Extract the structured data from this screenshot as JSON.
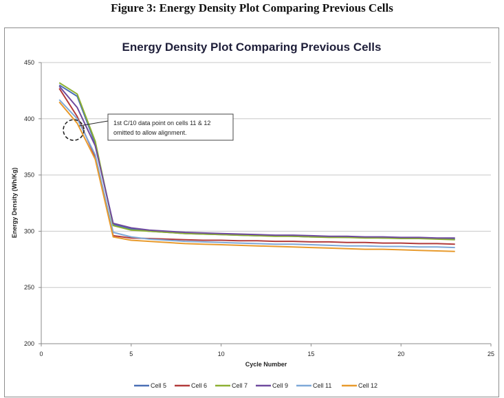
{
  "figure": {
    "caption": "Figure 3: Energy Density Plot Comparing Previous Cells"
  },
  "chart_data": {
    "type": "line",
    "title": "Energy Density Plot Comparing Previous Cells",
    "xlabel": "Cycle Number",
    "ylabel": "Energy Density (Wh/Kg)",
    "xlim": [
      0,
      25
    ],
    "ylim": [
      200,
      450
    ],
    "xticks": [
      0,
      5,
      10,
      15,
      20,
      25
    ],
    "yticks": [
      200,
      250,
      300,
      350,
      400,
      450
    ],
    "grid": "horizontal",
    "legend_position": "bottom",
    "series": [
      {
        "name": "Cell 5",
        "color": "#4a6fb5",
        "x": [
          1,
          2,
          3,
          4,
          5,
          6,
          7,
          8,
          9,
          10,
          11,
          12,
          13,
          14,
          15,
          16,
          17,
          18,
          19,
          20,
          21,
          22,
          23
        ],
        "y": [
          430,
          420,
          378,
          306,
          302,
          300,
          299,
          298,
          297.5,
          297,
          296.5,
          296,
          296,
          295.5,
          295,
          295,
          294.5,
          294.5,
          294,
          294,
          293.5,
          293.5,
          293
        ]
      },
      {
        "name": "Cell 6",
        "color": "#b23a3a",
        "x": [
          1,
          2,
          3,
          4,
          5,
          6,
          7,
          8,
          9,
          10,
          11,
          12,
          13,
          14,
          15,
          16,
          17,
          18,
          19,
          20,
          21,
          22,
          23
        ],
        "y": [
          427,
          402,
          366,
          296,
          294,
          293.5,
          293,
          292.5,
          292,
          292,
          291.5,
          291.5,
          291,
          291,
          290.5,
          290.5,
          290,
          290,
          289.5,
          289.5,
          289,
          289,
          288.5
        ]
      },
      {
        "name": "Cell 7",
        "color": "#8db032",
        "x": [
          1,
          2,
          3,
          4,
          5,
          6,
          7,
          8,
          9,
          10,
          11,
          12,
          13,
          14,
          15,
          16,
          17,
          18,
          19,
          20,
          21,
          22,
          23
        ],
        "y": [
          432,
          422,
          380,
          305,
          301,
          300,
          299,
          298,
          297.5,
          297,
          296.5,
          296,
          295.5,
          295.5,
          295,
          294.5,
          294.5,
          294,
          294,
          293.5,
          293.5,
          293,
          292.5
        ]
      },
      {
        "name": "Cell 9",
        "color": "#6e4a9e",
        "x": [
          1,
          2,
          3,
          4,
          5,
          6,
          7,
          8,
          9,
          10,
          11,
          12,
          13,
          14,
          15,
          16,
          17,
          18,
          19,
          20,
          21,
          22,
          23
        ],
        "y": [
          429,
          410,
          376,
          307,
          303,
          301,
          300,
          299,
          298.5,
          298,
          297.5,
          297,
          296.5,
          296.5,
          296,
          295.5,
          295.5,
          295,
          295,
          294.5,
          294.5,
          294,
          294
        ]
      },
      {
        "name": "Cell 11",
        "color": "#7ea8d8",
        "x": [
          1,
          2,
          3,
          4,
          5,
          6,
          7,
          8,
          9,
          10,
          11,
          12,
          13,
          14,
          15,
          16,
          17,
          18,
          19,
          20,
          21,
          22,
          23
        ],
        "y": [
          417,
          400,
          368,
          299,
          295,
          293,
          292,
          291,
          290.5,
          290,
          289.5,
          289,
          288.5,
          288.5,
          288,
          287.5,
          287,
          287,
          286.5,
          286.5,
          286,
          286,
          285.5
        ]
      },
      {
        "name": "Cell 12",
        "color": "#e89a2c",
        "x": [
          1,
          2,
          3,
          4,
          5,
          6,
          7,
          8,
          9,
          10,
          11,
          12,
          13,
          14,
          15,
          16,
          17,
          18,
          19,
          20,
          21,
          22,
          23
        ],
        "y": [
          415,
          396,
          364,
          295,
          292,
          291,
          290,
          289,
          288.5,
          288,
          287.5,
          287,
          286.5,
          286,
          285.5,
          285,
          284.5,
          284,
          284,
          283.5,
          283,
          282.5,
          282
        ]
      }
    ],
    "annotation": {
      "text_lines": [
        "1st C/10 data point on cells 11 & 12",
        "omitted to allow alignment."
      ],
      "target": {
        "x": 1.8,
        "y": 390
      }
    }
  }
}
